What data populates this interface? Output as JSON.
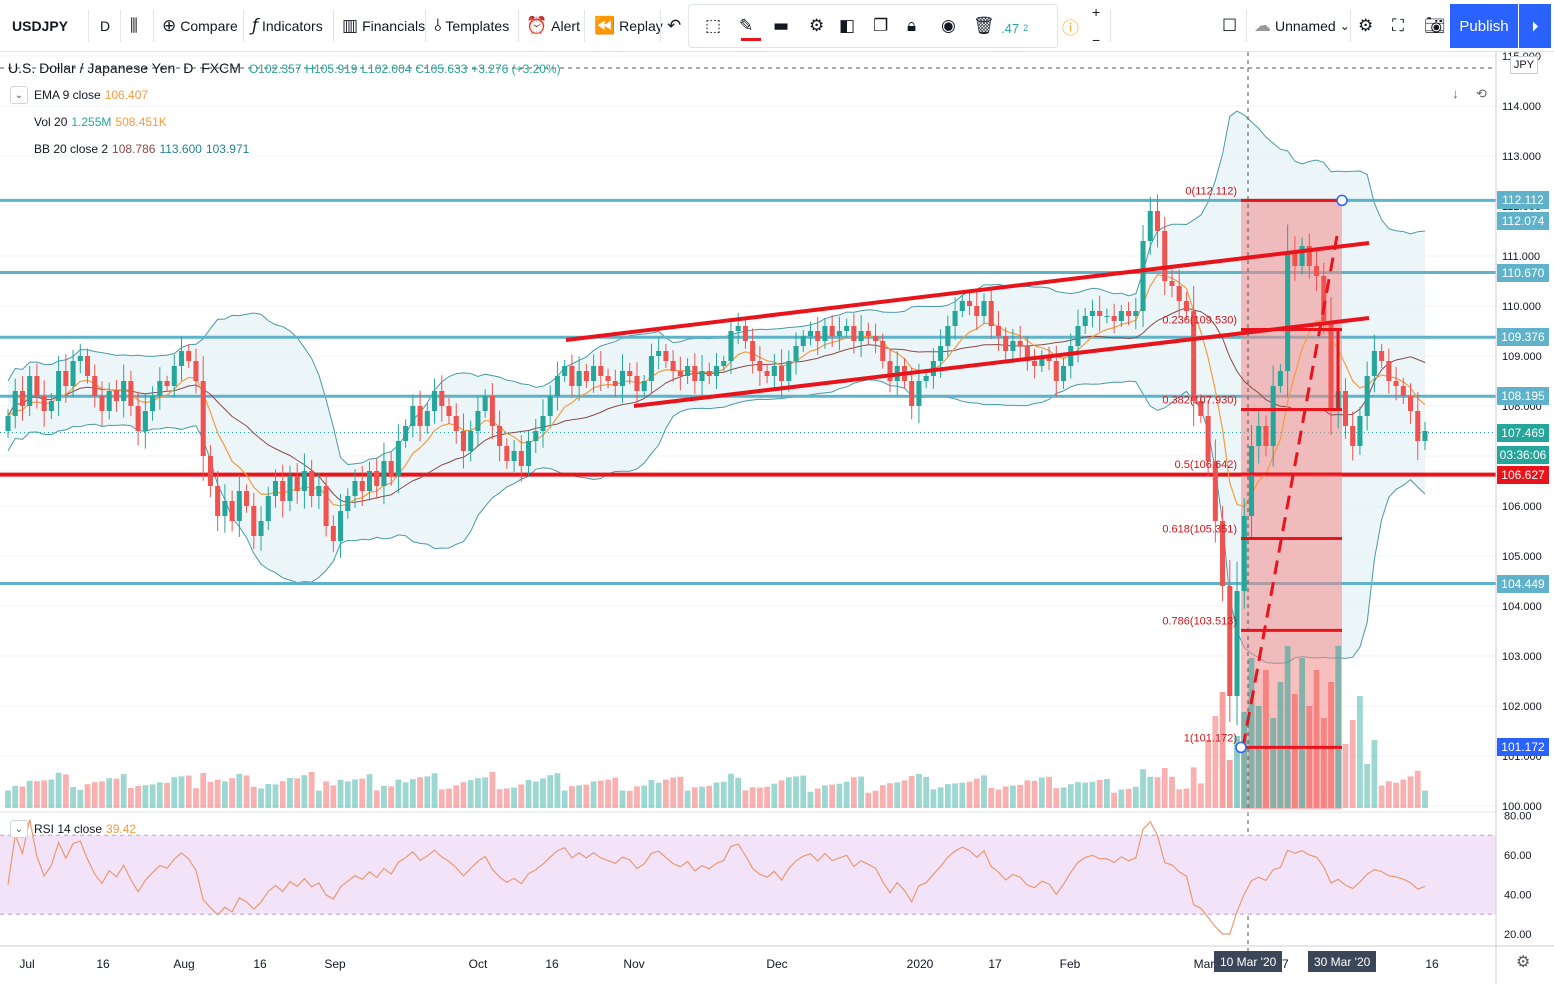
{
  "toolbar": {
    "symbol": "USDJPY",
    "interval": "D",
    "compare_label": "Compare",
    "indicators_label": "Indicators",
    "financials_label": "Financials",
    "templates_label": "Templates",
    "alert_label": "Alert",
    "replay_label": "Replay",
    "layout_name": "Unnamed",
    "publish_label": "Publish",
    "partial_value": ".47",
    "partial_sup": "2"
  },
  "header": {
    "instrument": "U.S. Dollar / Japanese Yen",
    "interval": "D",
    "source": "FXCM",
    "open": "O102.357",
    "high": "H105.919",
    "low": "L102.004",
    "close": "C105.633",
    "change": "+3.276 (+3.20%)",
    "currency": "JPY"
  },
  "indicators": {
    "ema": {
      "label": "EMA 9 close",
      "value": "106.407"
    },
    "vol": {
      "label": "Vol 20",
      "v1": "1.255M",
      "v2": "508.451K"
    },
    "bb": {
      "label": "BB 20 close 2",
      "v1": "108.786",
      "v2": "113.600",
      "v3": "103.971"
    },
    "rsi": {
      "label": "RSI 14 close",
      "value": "39.42"
    }
  },
  "colors": {
    "up": "#26a69a",
    "down": "#ef5350",
    "hline": "#5fb2c9",
    "red": "#e8131b",
    "bb_fill": "#e4f2f5",
    "rsi_fill": "#f3e3f9",
    "rsi_line": "#e89a72",
    "ema": "#f59b42",
    "basis": "#8b4a4a"
  },
  "price_badges": [
    {
      "price": 112.112,
      "label": "112.112",
      "color": "#5fb2c9"
    },
    {
      "price": 111.7,
      "label": "112.074",
      "color": "#5fb2c9"
    },
    {
      "price": 110.67,
      "label": "110.670",
      "color": "#5fb2c9"
    },
    {
      "price": 109.376,
      "label": "109.376",
      "color": "#5fb2c9"
    },
    {
      "price": 108.195,
      "label": "108.195",
      "color": "#5fb2c9"
    },
    {
      "price": 107.469,
      "label": "107.469",
      "color": "#26a69a"
    },
    {
      "price": 107.02,
      "label": "03:36:06",
      "color": "#26a69a"
    },
    {
      "price": 106.627,
      "label": "106.627",
      "color": "#e8131b"
    },
    {
      "price": 104.449,
      "label": "104.449",
      "color": "#5fb2c9"
    },
    {
      "price": 101.172,
      "label": "101.172",
      "color": "#2962ff"
    }
  ],
  "date_badges": [
    {
      "label": "10 Mar '20",
      "x": 1248
    },
    {
      "label": "30 Mar '20",
      "x": 1342
    }
  ],
  "chart_data": {
    "type": "candlestick",
    "symbol": "USDJPY",
    "interval": "D",
    "price_axis": {
      "ticks": [
        "115.000",
        "114.000",
        "113.000",
        "112.000",
        "111.000",
        "110.000",
        "109.000",
        "108.000",
        "107.000",
        "106.000",
        "105.000",
        "104.000",
        "103.000",
        "102.000",
        "101.000",
        "100.000"
      ],
      "range": [
        100,
        115
      ]
    },
    "time_axis": {
      "ticks": [
        "Jul",
        "16",
        "Aug",
        "16",
        "Sep",
        "Oct",
        "16",
        "Nov",
        "Dec",
        "2020",
        "17",
        "Feb",
        "Mar",
        "17",
        "16"
      ]
    },
    "horizontal_lines": [
      112.112,
      110.67,
      109.376,
      108.195,
      104.449
    ],
    "red_horizontal_line": 106.627,
    "fibonacci": [
      {
        "level": "0",
        "price": 112.112,
        "label": "0(112.112)"
      },
      {
        "level": "0.236",
        "price": 109.53,
        "label": "0.236(109.530)"
      },
      {
        "level": "0.382",
        "price": 107.93,
        "label": "0.382(107.930)"
      },
      {
        "level": "0.5",
        "price": 106.64,
        "label": "0.5(106.642)"
      },
      {
        "level": "0.618",
        "price": 105.351,
        "label": "0.618(105.351)"
      },
      {
        "level": "0.786",
        "price": 103.513,
        "label": "0.786(103.513)"
      },
      {
        "level": "1",
        "price": 101.172,
        "label": "1(101.172)"
      }
    ],
    "channel_lines": [
      {
        "from": [
          "Oct 31",
          109.3
        ],
        "to": [
          "Mar 25",
          111.2
        ]
      },
      {
        "from": [
          "Nov 1",
          108.0
        ],
        "to": [
          "Mar 26",
          109.7
        ]
      }
    ],
    "rsi": {
      "ticks": [
        "80.00",
        "60.00",
        "40.00",
        "20.00"
      ],
      "range": [
        15,
        82
      ],
      "bands": [
        70,
        30
      ],
      "last": 39.42
    },
    "closes": [
      107.8,
      108.3,
      108.0,
      108.6,
      108.2,
      107.9,
      108.1,
      108.7,
      108.4,
      108.9,
      109.0,
      108.6,
      108.2,
      107.9,
      108.3,
      108.1,
      108.5,
      108.0,
      107.5,
      107.9,
      108.2,
      108.5,
      108.4,
      108.8,
      109.1,
      108.9,
      108.5,
      107.0,
      106.4,
      105.8,
      106.1,
      105.7,
      106.3,
      106.0,
      105.4,
      105.7,
      106.2,
      106.5,
      106.1,
      106.6,
      106.3,
      106.7,
      106.2,
      106.4,
      105.6,
      105.3,
      105.9,
      106.2,
      106.5,
      106.3,
      106.7,
      106.4,
      106.9,
      106.6,
      107.3,
      107.6,
      108.0,
      107.6,
      107.9,
      108.3,
      108.0,
      107.8,
      107.5,
      107.1,
      107.5,
      107.9,
      108.2,
      107.6,
      107.2,
      106.9,
      107.1,
      106.8,
      107.3,
      107.5,
      107.8,
      108.2,
      108.6,
      108.8,
      108.4,
      108.7,
      108.5,
      108.8,
      108.6,
      108.5,
      108.4,
      108.7,
      108.6,
      108.3,
      108.5,
      109.0,
      109.1,
      108.9,
      108.7,
      108.6,
      108.8,
      108.5,
      108.7,
      108.6,
      108.8,
      108.9,
      109.5,
      109.6,
      109.3,
      108.9,
      108.7,
      108.6,
      108.8,
      108.5,
      108.9,
      109.2,
      109.4,
      109.5,
      109.3,
      109.6,
      109.4,
      109.5,
      109.6,
      109.3,
      109.5,
      109.4,
      109.3,
      108.9,
      108.5,
      108.8,
      108.5,
      108.0,
      108.5,
      108.6,
      108.9,
      109.2,
      109.6,
      109.9,
      110.1,
      110.0,
      109.8,
      110.1,
      109.6,
      109.4,
      109.1,
      109.3,
      109.2,
      108.9,
      108.8,
      109.0,
      108.9,
      108.5,
      108.8,
      109.2,
      109.6,
      109.8,
      109.9,
      109.8,
      109.8,
      109.7,
      109.9,
      109.8,
      109.9,
      111.3,
      111.9,
      111.5,
      110.5,
      110.4,
      110.1,
      109.9,
      108.1,
      107.8,
      106.9,
      105.7,
      104.4,
      102.2,
      104.3,
      105.8,
      107.2,
      107.6,
      107.2,
      108.4,
      108.7,
      111.1,
      110.8,
      111.2,
      110.8,
      110.6,
      109.7,
      107.9,
      108.3,
      107.6,
      107.2,
      107.8,
      108.6,
      109.1,
      108.9,
      108.5,
      108.4,
      108.2,
      107.9,
      107.3,
      107.5
    ]
  }
}
